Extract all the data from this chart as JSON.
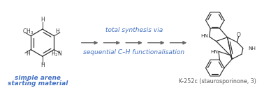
{
  "bg_color": "#ffffff",
  "arrow_color": "#666666",
  "text_color_blue": "#4472c4",
  "text_color_dark": "#333333",
  "text_color_label": "#555555",
  "label_top": "total synthesis via",
  "label_bottom": "sequential C–H functionalisation",
  "left_label_line1": "simple arene",
  "left_label_line2": "starting material",
  "right_label": "K-252c (staurosporinone, 3)",
  "figsize": [
    3.78,
    1.27
  ],
  "dpi": 100
}
